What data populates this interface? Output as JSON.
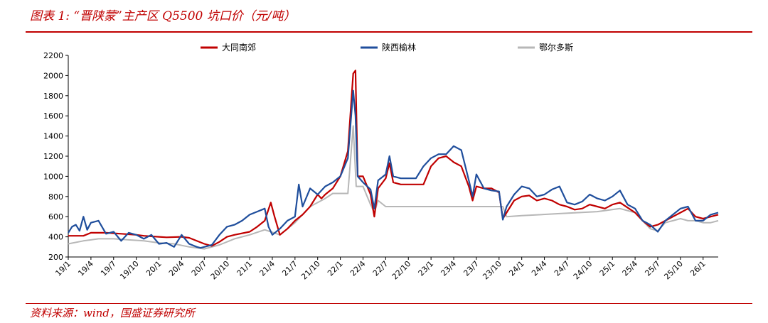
{
  "header": {
    "title": "图表 1: “晋陕蒙”主产区 Q5500 坑口价（元/吨）"
  },
  "footer": {
    "source": "资料来源：wind，国盛证券研究所"
  },
  "colors": {
    "accent": "#c00000",
    "series_red": "#c00000",
    "series_blue": "#1f4e9c",
    "series_gray": "#b7b7b7"
  },
  "chart_data": {
    "type": "line",
    "title": "",
    "xlabel": "",
    "ylabel": "",
    "ylim": [
      200,
      2200
    ],
    "yticks": [
      200,
      400,
      600,
      800,
      1000,
      1200,
      1400,
      1600,
      1800,
      2000,
      2200
    ],
    "xlim": [
      0,
      86
    ],
    "x_tick_labels": [
      "19/1",
      "19/4",
      "19/7",
      "19/10",
      "20/1",
      "20/4",
      "20/7",
      "20/10",
      "21/1",
      "21/4",
      "21/7",
      "21/10",
      "22/1",
      "22/4",
      "22/7",
      "22/10",
      "23/1",
      "23/4",
      "23/7",
      "23/10",
      "24/1",
      "24/4",
      "24/7",
      "24/10",
      "25/1",
      "25/4",
      "25/7",
      "25/10",
      "26/1"
    ],
    "legend_position": "top",
    "grid": false,
    "series": [
      {
        "name": "大同南郊",
        "color": "#c00000",
        "points": [
          [
            0,
            410
          ],
          [
            2,
            410
          ],
          [
            3,
            440
          ],
          [
            5,
            440
          ],
          [
            7,
            430
          ],
          [
            9,
            420
          ],
          [
            10,
            410
          ],
          [
            12,
            400
          ],
          [
            13,
            395
          ],
          [
            15,
            400
          ],
          [
            16,
            390
          ],
          [
            18,
            330
          ],
          [
            19,
            310
          ],
          [
            20,
            350
          ],
          [
            21,
            400
          ],
          [
            22,
            420
          ],
          [
            24,
            450
          ],
          [
            25,
            500
          ],
          [
            26,
            560
          ],
          [
            26.8,
            740
          ],
          [
            27.3,
            600
          ],
          [
            28,
            420
          ],
          [
            29,
            480
          ],
          [
            30,
            560
          ],
          [
            31,
            620
          ],
          [
            32,
            700
          ],
          [
            33,
            820
          ],
          [
            33.5,
            780
          ],
          [
            34,
            820
          ],
          [
            35,
            880
          ],
          [
            36,
            1000
          ],
          [
            37,
            1250
          ],
          [
            37.7,
            2020
          ],
          [
            38,
            2050
          ],
          [
            38.3,
            1000
          ],
          [
            39,
            1000
          ],
          [
            40,
            820
          ],
          [
            40.5,
            600
          ],
          [
            41,
            880
          ],
          [
            42,
            980
          ],
          [
            42.5,
            1130
          ],
          [
            43,
            940
          ],
          [
            44,
            920
          ],
          [
            45,
            920
          ],
          [
            46,
            920
          ],
          [
            47,
            920
          ],
          [
            48,
            1100
          ],
          [
            49,
            1180
          ],
          [
            50,
            1200
          ],
          [
            51,
            1140
          ],
          [
            52,
            1100
          ],
          [
            53,
            900
          ],
          [
            53.5,
            760
          ],
          [
            54,
            900
          ],
          [
            55,
            880
          ],
          [
            56,
            880
          ],
          [
            57,
            840
          ],
          [
            57.5,
            580
          ],
          [
            58,
            640
          ],
          [
            59,
            760
          ],
          [
            60,
            800
          ],
          [
            61,
            810
          ],
          [
            62,
            760
          ],
          [
            63,
            780
          ],
          [
            64,
            760
          ],
          [
            65,
            720
          ],
          [
            66,
            700
          ],
          [
            67,
            670
          ],
          [
            68,
            680
          ],
          [
            69,
            720
          ],
          [
            70,
            700
          ],
          [
            71,
            680
          ],
          [
            72,
            720
          ],
          [
            73,
            740
          ],
          [
            74,
            690
          ],
          [
            75,
            640
          ],
          [
            76,
            560
          ],
          [
            77,
            500
          ],
          [
            78,
            520
          ],
          [
            79,
            560
          ],
          [
            80,
            600
          ],
          [
            81,
            640
          ],
          [
            82,
            680
          ],
          [
            83,
            600
          ],
          [
            84,
            580
          ],
          [
            85,
            600
          ],
          [
            86,
            620
          ]
        ]
      },
      {
        "name": "陕西榆林",
        "color": "#1f4e9c",
        "points": [
          [
            0,
            440
          ],
          [
            0.5,
            500
          ],
          [
            1,
            520
          ],
          [
            1.5,
            460
          ],
          [
            2,
            600
          ],
          [
            2.5,
            470
          ],
          [
            3,
            540
          ],
          [
            4,
            560
          ],
          [
            5,
            430
          ],
          [
            6,
            450
          ],
          [
            7,
            360
          ],
          [
            8,
            440
          ],
          [
            9,
            420
          ],
          [
            10,
            380
          ],
          [
            11,
            420
          ],
          [
            12,
            330
          ],
          [
            13,
            340
          ],
          [
            14,
            300
          ],
          [
            15,
            420
          ],
          [
            16,
            330
          ],
          [
            17,
            300
          ],
          [
            17.5,
            290
          ],
          [
            18,
            300
          ],
          [
            19,
            320
          ],
          [
            20,
            420
          ],
          [
            21,
            500
          ],
          [
            22,
            520
          ],
          [
            23,
            560
          ],
          [
            24,
            620
          ],
          [
            25,
            650
          ],
          [
            26,
            680
          ],
          [
            26.5,
            500
          ],
          [
            27,
            420
          ],
          [
            28,
            480
          ],
          [
            29,
            560
          ],
          [
            30,
            600
          ],
          [
            30.5,
            920
          ],
          [
            31,
            700
          ],
          [
            32,
            880
          ],
          [
            33,
            820
          ],
          [
            34,
            900
          ],
          [
            35,
            940
          ],
          [
            36,
            1000
          ],
          [
            37,
            1180
          ],
          [
            37.7,
            1850
          ],
          [
            38,
            1600
          ],
          [
            38.3,
            1000
          ],
          [
            39,
            940
          ],
          [
            40,
            870
          ],
          [
            40.5,
            680
          ],
          [
            41,
            960
          ],
          [
            42,
            1020
          ],
          [
            42.5,
            1200
          ],
          [
            43,
            1000
          ],
          [
            44,
            980
          ],
          [
            45,
            980
          ],
          [
            46,
            980
          ],
          [
            47,
            1100
          ],
          [
            48,
            1180
          ],
          [
            49,
            1220
          ],
          [
            50,
            1220
          ],
          [
            51,
            1300
          ],
          [
            52,
            1260
          ],
          [
            53,
            960
          ],
          [
            53.5,
            800
          ],
          [
            54,
            1020
          ],
          [
            55,
            880
          ],
          [
            56,
            860
          ],
          [
            57,
            850
          ],
          [
            57.5,
            570
          ],
          [
            58,
            700
          ],
          [
            59,
            820
          ],
          [
            60,
            900
          ],
          [
            61,
            880
          ],
          [
            62,
            800
          ],
          [
            63,
            820
          ],
          [
            64,
            870
          ],
          [
            65,
            900
          ],
          [
            66,
            740
          ],
          [
            67,
            720
          ],
          [
            68,
            750
          ],
          [
            69,
            820
          ],
          [
            70,
            780
          ],
          [
            71,
            760
          ],
          [
            72,
            800
          ],
          [
            73,
            860
          ],
          [
            74,
            720
          ],
          [
            75,
            680
          ],
          [
            76,
            560
          ],
          [
            77,
            520
          ],
          [
            78,
            450
          ],
          [
            79,
            560
          ],
          [
            80,
            620
          ],
          [
            81,
            680
          ],
          [
            82,
            700
          ],
          [
            83,
            560
          ],
          [
            84,
            560
          ],
          [
            85,
            620
          ],
          [
            86,
            640
          ]
        ]
      },
      {
        "name": "鄂尔多斯",
        "color": "#b7b7b7",
        "points": [
          [
            0,
            330
          ],
          [
            2,
            360
          ],
          [
            4,
            380
          ],
          [
            6,
            380
          ],
          [
            8,
            370
          ],
          [
            10,
            360
          ],
          [
            12,
            340
          ],
          [
            14,
            330
          ],
          [
            16,
            300
          ],
          [
            18,
            280
          ],
          [
            20,
            320
          ],
          [
            22,
            380
          ],
          [
            24,
            420
          ],
          [
            26,
            470
          ],
          [
            28,
            420
          ],
          [
            30,
            540
          ],
          [
            32,
            700
          ],
          [
            34,
            780
          ],
          [
            35,
            830
          ],
          [
            37,
            830
          ],
          [
            37.7,
            1500
          ],
          [
            38.1,
            900
          ],
          [
            39,
            900
          ],
          [
            40,
            720
          ],
          [
            40.5,
            640
          ],
          [
            41,
            760
          ],
          [
            42,
            700
          ],
          [
            44,
            700
          ],
          [
            48,
            700
          ],
          [
            52,
            700
          ],
          [
            56,
            700
          ],
          [
            57.5,
            700
          ],
          [
            58,
            600
          ],
          [
            60,
            610
          ],
          [
            65,
            630
          ],
          [
            70,
            650
          ],
          [
            73,
            680
          ],
          [
            75,
            640
          ],
          [
            76,
            560
          ],
          [
            77,
            480
          ],
          [
            78,
            460
          ],
          [
            79,
            540
          ],
          [
            80,
            560
          ],
          [
            81,
            580
          ],
          [
            82,
            560
          ],
          [
            83,
            560
          ],
          [
            84,
            540
          ],
          [
            85,
            540
          ],
          [
            86,
            560
          ]
        ]
      }
    ]
  }
}
